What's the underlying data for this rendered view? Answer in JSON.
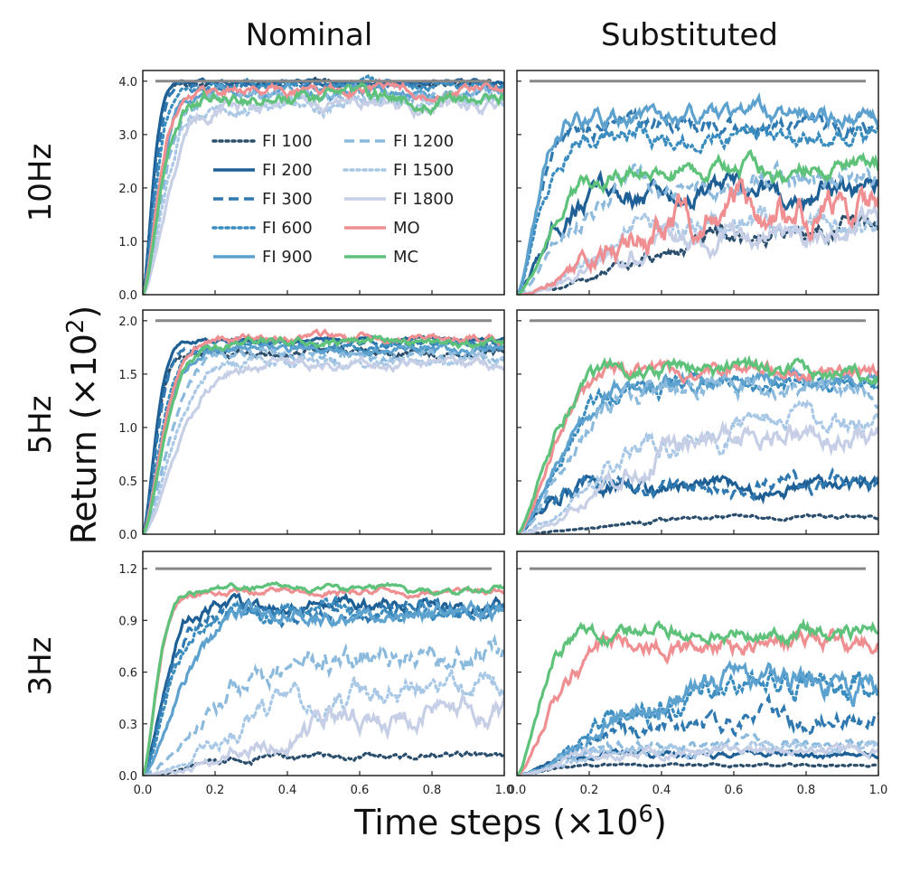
{
  "figure": {
    "columns": [
      "Nominal",
      "Substituted"
    ],
    "rows": [
      "10Hz",
      "5Hz",
      "3Hz"
    ],
    "xlabel_main": "Time steps (×10",
    "xlabel_exp": "6",
    "xlabel_close": ")",
    "ylabel_main": "Return (×10",
    "ylabel_exp": "2",
    "ylabel_close": ")"
  },
  "legend": [
    {
      "label": "FI 100",
      "color": "#2a4e6c",
      "dash": "dot"
    },
    {
      "label": "FI 200",
      "color": "#1e5f95",
      "dash": "solid"
    },
    {
      "label": "FI 300",
      "color": "#2f79b0",
      "dash": "dash"
    },
    {
      "label": "FI 600",
      "color": "#3b8dbf",
      "dash": "dot"
    },
    {
      "label": "FI 900",
      "color": "#5da1cf",
      "dash": "solid"
    },
    {
      "label": "FI 1200",
      "color": "#8cbadd",
      "dash": "dash"
    },
    {
      "label": "FI 1500",
      "color": "#a9c8e6",
      "dash": "dot"
    },
    {
      "label": "FI 1800",
      "color": "#c6cfe6",
      "dash": "solid"
    },
    {
      "label": "MO",
      "color": "#ef8f91",
      "dash": "solid"
    },
    {
      "label": "MC",
      "color": "#5ec27b",
      "dash": "solid"
    }
  ],
  "chart_data": [
    {
      "type": "line",
      "row": "10Hz",
      "column": "Nominal",
      "xlim": [
        0,
        1.0
      ],
      "ylim": [
        0,
        4.2
      ],
      "xticks": [
        "0.0",
        "0.2",
        "0.4",
        "0.6",
        "0.8",
        "1.0"
      ],
      "yticks": [
        "0.0",
        "1.0",
        "2.0",
        "3.0",
        "4.0"
      ],
      "ytick_values": [
        0,
        1,
        2,
        3,
        4
      ],
      "reference_line": 4.0,
      "series": [
        {
          "name": "FI 100",
          "t": 0.035,
          "final": 3.95,
          "noise": 0.03
        },
        {
          "name": "FI 200",
          "t": 0.035,
          "final": 3.97,
          "noise": 0.02
        },
        {
          "name": "FI 300",
          "t": 0.04,
          "final": 3.95,
          "noise": 0.03
        },
        {
          "name": "FI 600",
          "t": 0.045,
          "final": 3.9,
          "noise": 0.04
        },
        {
          "name": "FI 900",
          "t": 0.055,
          "final": 3.8,
          "noise": 0.05
        },
        {
          "name": "FI 1200",
          "t": 0.065,
          "final": 3.7,
          "noise": 0.06
        },
        {
          "name": "FI 1500",
          "t": 0.075,
          "final": 3.6,
          "noise": 0.07
        },
        {
          "name": "FI 1800",
          "t": 0.085,
          "final": 3.55,
          "noise": 0.07
        },
        {
          "name": "MO",
          "t": 0.055,
          "final": 3.85,
          "noise": 0.05
        },
        {
          "name": "MC",
          "t": 0.06,
          "final": 3.7,
          "noise": 0.07
        }
      ]
    },
    {
      "type": "line",
      "row": "10Hz",
      "column": "Substituted",
      "xlim": [
        0,
        1.0
      ],
      "ylim": [
        0,
        4.2
      ],
      "xticks": [
        "0.0",
        "0.2",
        "0.4",
        "0.6",
        "0.8",
        "1.0"
      ],
      "yticks": [],
      "ytick_values": [
        0,
        1,
        2,
        3,
        4
      ],
      "reference_line": 4.0,
      "series": [
        {
          "name": "FI 100",
          "t": 0.45,
          "final": 1.3,
          "noise": 0.1
        },
        {
          "name": "FI 200",
          "t": 0.1,
          "final": 1.9,
          "noise": 0.12
        },
        {
          "name": "FI 300",
          "t": 0.07,
          "final": 3.15,
          "noise": 0.09
        },
        {
          "name": "FI 600",
          "t": 0.08,
          "final": 3.0,
          "noise": 0.1
        },
        {
          "name": "FI 900",
          "t": 0.07,
          "final": 3.35,
          "noise": 0.09
        },
        {
          "name": "FI 1200",
          "t": 0.15,
          "final": 2.1,
          "noise": 0.12
        },
        {
          "name": "FI 1500",
          "t": 0.25,
          "final": 1.3,
          "noise": 0.12
        },
        {
          "name": "FI 1800",
          "t": 0.3,
          "final": 1.2,
          "noise": 0.12
        },
        {
          "name": "MO",
          "t": 0.3,
          "final": 1.7,
          "noise": 0.18
        },
        {
          "name": "MC",
          "t": 0.12,
          "final": 2.35,
          "noise": 0.09
        }
      ]
    },
    {
      "type": "line",
      "row": "5Hz",
      "column": "Nominal",
      "xlim": [
        0,
        1.0
      ],
      "ylim": [
        0,
        2.1
      ],
      "xticks": [
        "0.0",
        "0.2",
        "0.4",
        "0.6",
        "0.8",
        "1.0"
      ],
      "yticks": [
        "0.0",
        "0.5",
        "1.0",
        "1.5",
        "2.0"
      ],
      "ytick_values": [
        0,
        0.5,
        1,
        1.5,
        2
      ],
      "reference_line": 2.0,
      "series": [
        {
          "name": "FI 100",
          "t": 0.045,
          "final": 1.7,
          "noise": 0.02
        },
        {
          "name": "FI 200",
          "t": 0.045,
          "final": 1.82,
          "noise": 0.01
        },
        {
          "name": "FI 300",
          "t": 0.05,
          "final": 1.78,
          "noise": 0.015
        },
        {
          "name": "FI 600",
          "t": 0.06,
          "final": 1.75,
          "noise": 0.02
        },
        {
          "name": "FI 900",
          "t": 0.07,
          "final": 1.73,
          "noise": 0.02
        },
        {
          "name": "FI 1200",
          "t": 0.09,
          "final": 1.68,
          "noise": 0.025
        },
        {
          "name": "FI 1500",
          "t": 0.1,
          "final": 1.62,
          "noise": 0.025
        },
        {
          "name": "FI 1800",
          "t": 0.12,
          "final": 1.6,
          "noise": 0.025
        },
        {
          "name": "MO",
          "t": 0.07,
          "final": 1.84,
          "noise": 0.02
        },
        {
          "name": "MC",
          "t": 0.075,
          "final": 1.8,
          "noise": 0.02
        }
      ]
    },
    {
      "type": "line",
      "row": "5Hz",
      "column": "Substituted",
      "xlim": [
        0,
        1.0
      ],
      "ylim": [
        0,
        2.1
      ],
      "xticks": [
        "0.0",
        "0.2",
        "0.4",
        "0.6",
        "0.8",
        "1.0"
      ],
      "yticks": [],
      "ytick_values": [
        0,
        0.5,
        1,
        1.5,
        2
      ],
      "reference_line": 2.0,
      "series": [
        {
          "name": "FI 100",
          "t": 0.3,
          "final": 0.16,
          "noise": 0.01
        },
        {
          "name": "FI 200",
          "t": 0.08,
          "final": 0.45,
          "noise": 0.04
        },
        {
          "name": "FI 300",
          "t": 0.08,
          "final": 0.47,
          "noise": 0.04
        },
        {
          "name": "FI 600",
          "t": 0.15,
          "final": 1.4,
          "noise": 0.04
        },
        {
          "name": "FI 900",
          "t": 0.15,
          "final": 1.45,
          "noise": 0.04
        },
        {
          "name": "FI 1200",
          "t": 0.17,
          "final": 1.38,
          "noise": 0.05
        },
        {
          "name": "FI 1500",
          "t": 0.28,
          "final": 1.03,
          "noise": 0.06
        },
        {
          "name": "FI 1800",
          "t": 0.32,
          "final": 0.95,
          "noise": 0.06
        },
        {
          "name": "MO",
          "t": 0.12,
          "final": 1.5,
          "noise": 0.04
        },
        {
          "name": "MC",
          "t": 0.11,
          "final": 1.52,
          "noise": 0.04
        }
      ]
    },
    {
      "type": "line",
      "row": "3Hz",
      "column": "Nominal",
      "xlim": [
        0,
        1.0
      ],
      "ylim": [
        0,
        1.3
      ],
      "xticks": [
        "0.0",
        "0.2",
        "0.4",
        "0.6",
        "0.8",
        "1.0"
      ],
      "yticks": [
        "0.0",
        "0.3",
        "0.6",
        "0.9",
        "1.2"
      ],
      "ytick_values": [
        0,
        0.3,
        0.6,
        0.9,
        1.2
      ],
      "reference_line": 1.2,
      "series": [
        {
          "name": "FI 100",
          "t": 0.2,
          "final": 0.11,
          "noise": 0.01
        },
        {
          "name": "FI 200",
          "t": 0.07,
          "final": 0.98,
          "noise": 0.02
        },
        {
          "name": "FI 300",
          "t": 0.08,
          "final": 0.97,
          "noise": 0.025
        },
        {
          "name": "FI 600",
          "t": 0.09,
          "final": 0.95,
          "noise": 0.025
        },
        {
          "name": "FI 900",
          "t": 0.12,
          "final": 0.93,
          "noise": 0.025
        },
        {
          "name": "FI 1200",
          "t": 0.22,
          "final": 0.68,
          "noise": 0.04
        },
        {
          "name": "FI 1500",
          "t": 0.32,
          "final": 0.5,
          "noise": 0.04
        },
        {
          "name": "FI 1800",
          "t": 0.4,
          "final": 0.4,
          "noise": 0.04
        },
        {
          "name": "MO",
          "t": 0.05,
          "final": 1.07,
          "noise": 0.01
        },
        {
          "name": "MC",
          "t": 0.05,
          "final": 1.08,
          "noise": 0.01
        }
      ]
    },
    {
      "type": "line",
      "row": "3Hz",
      "column": "Substituted",
      "xlim": [
        0,
        1.0
      ],
      "ylim": [
        0,
        1.3
      ],
      "xticks": [
        "0.0",
        "0.2",
        "0.4",
        "0.6",
        "0.8",
        "1.0"
      ],
      "yticks": [],
      "ytick_values": [
        0,
        0.3,
        0.6,
        0.9,
        1.2
      ],
      "reference_line": 1.2,
      "series": [
        {
          "name": "FI 100",
          "t": 0.1,
          "final": 0.06,
          "noise": 0.004
        },
        {
          "name": "FI 200",
          "t": 0.1,
          "final": 0.12,
          "noise": 0.01
        },
        {
          "name": "FI 300",
          "t": 0.25,
          "final": 0.32,
          "noise": 0.03
        },
        {
          "name": "FI 600",
          "t": 0.3,
          "final": 0.55,
          "noise": 0.04
        },
        {
          "name": "FI 900",
          "t": 0.28,
          "final": 0.52,
          "noise": 0.04
        },
        {
          "name": "FI 1200",
          "t": 0.15,
          "final": 0.18,
          "noise": 0.015
        },
        {
          "name": "FI 1500",
          "t": 0.15,
          "final": 0.16,
          "noise": 0.015
        },
        {
          "name": "FI 1800",
          "t": 0.15,
          "final": 0.14,
          "noise": 0.015
        },
        {
          "name": "MO",
          "t": 0.12,
          "final": 0.75,
          "noise": 0.03
        },
        {
          "name": "MC",
          "t": 0.08,
          "final": 0.84,
          "noise": 0.025
        }
      ]
    }
  ]
}
